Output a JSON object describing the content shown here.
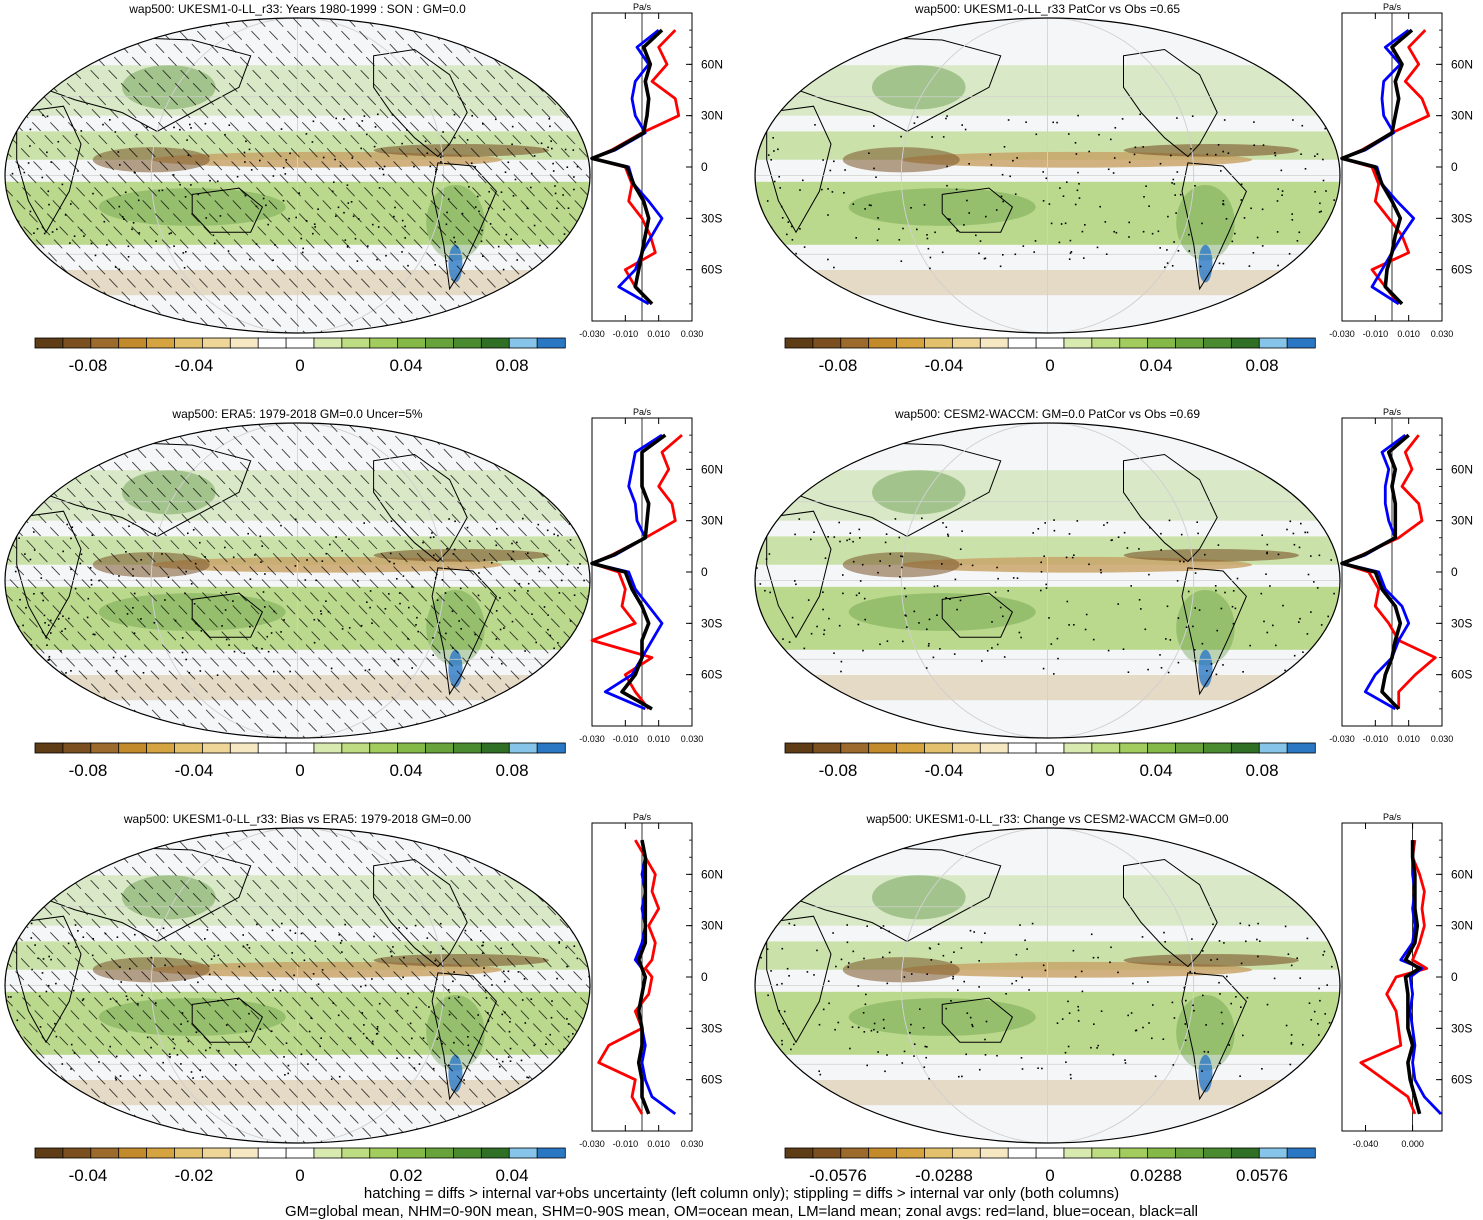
{
  "figure": {
    "footnotes": [
      "hatching = diffs > internal var+obs uncertainty (left column only); stippling = diffs > internal var only (both columns)",
      "GM=global mean, NHM=0-90N mean, SHM=0-90S mean, OM=ocean mean, LM=land mean; zonal avgs: red=land, blue=ocean, black=all"
    ]
  },
  "colors": {
    "land": "#ff0000",
    "ocean": "#0000ff",
    "all": "#000000",
    "palette": [
      "#5e3c16",
      "#7b4f1f",
      "#9c6a2c",
      "#c38a2c",
      "#d5a441",
      "#e3c06c",
      "#eed598",
      "#f6e8c2",
      "#ffffff",
      "#ffffff",
      "#d9eab0",
      "#bedd82",
      "#a2cd5e",
      "#85b947",
      "#67a33a",
      "#4b8b2f",
      "#2f6f26",
      "#86c4ea",
      "#2a78c4"
    ],
    "map_colors": {
      "neutral": "#f5f6f8",
      "green": "#a7cf6a",
      "greenDark": "#4f8f35",
      "brown": "#c9a56a",
      "brownDark": "#7a5428",
      "blue": "#2a78c4"
    }
  },
  "chart_data": [
    {
      "type": "heatmap",
      "title": "wap500: UKESM1-0-LL_r33: Years 1980-1999 : SON : GM=0.0",
      "colorbar": {
        "ticks": [
          "-0.08",
          "-0.04",
          "0",
          "0.04",
          "0.08"
        ],
        "range": [
          -0.1,
          0.1
        ]
      },
      "hatching": true,
      "zonal": {
        "units": "Pa/s",
        "xticks": [
          "-0.030",
          "-0.010",
          "0.010",
          "0.030"
        ],
        "x_range": [
          -0.03,
          0.03
        ],
        "lat_ticks": [
          "60N",
          "30N",
          "0",
          "30S",
          "60S"
        ],
        "lat": [
          80,
          70,
          60,
          50,
          40,
          30,
          20,
          10,
          5,
          0,
          -10,
          -20,
          -30,
          -40,
          -50,
          -60,
          -70,
          -80
        ],
        "series": [
          {
            "name": "land",
            "values": [
              0.02,
              0.01,
              0.015,
              0.006,
              0.02,
              0.022,
              0.0,
              -0.018,
              -0.03,
              -0.01,
              -0.006,
              -0.008,
              0.0,
              0.005,
              0.008,
              -0.01,
              -0.004,
              0.006
            ]
          },
          {
            "name": "ocean",
            "values": [
              0.01,
              -0.003,
              0.004,
              -0.004,
              -0.006,
              -0.004,
              0.002,
              -0.016,
              -0.03,
              -0.008,
              -0.005,
              0.004,
              0.012,
              0.006,
              0.0,
              -0.004,
              -0.014,
              0.004
            ]
          },
          {
            "name": "all",
            "values": [
              0.012,
              0.001,
              0.005,
              0.002,
              0.004,
              0.003,
              0.001,
              -0.017,
              -0.03,
              -0.009,
              -0.005,
              0.001,
              0.004,
              0.002,
              0.0,
              -0.002,
              -0.004,
              0.006
            ]
          }
        ]
      }
    },
    {
      "type": "heatmap",
      "title": "wap500: UKESM1-0-LL_r33 PatCor vs Obs =0.65",
      "colorbar": {
        "ticks": [
          "-0.08",
          "-0.04",
          "0",
          "0.04",
          "0.08"
        ],
        "range": [
          -0.1,
          0.1
        ]
      },
      "hatching": false,
      "zonal": {
        "units": "Pa/s",
        "xticks": [
          "-0.030",
          "-0.010",
          "0.010",
          "0.030"
        ],
        "x_range": [
          -0.03,
          0.03
        ],
        "lat_ticks": [
          "60N",
          "30N",
          "0",
          "30S",
          "60S"
        ],
        "lat": [
          80,
          70,
          60,
          50,
          40,
          30,
          20,
          10,
          5,
          0,
          -10,
          -20,
          -30,
          -40,
          -50,
          -60,
          -70,
          -80
        ],
        "series": [
          {
            "name": "land",
            "values": [
              0.02,
              0.01,
              0.016,
              0.008,
              0.018,
              0.022,
              0.0,
              -0.018,
              -0.03,
              -0.012,
              -0.008,
              -0.01,
              -0.002,
              0.006,
              0.01,
              -0.012,
              -0.004,
              0.004
            ]
          },
          {
            "name": "ocean",
            "values": [
              0.01,
              -0.004,
              0.005,
              -0.005,
              -0.006,
              -0.005,
              0.001,
              -0.016,
              -0.03,
              -0.009,
              -0.006,
              0.003,
              0.013,
              0.006,
              0.0,
              -0.006,
              -0.012,
              0.004
            ]
          },
          {
            "name": "all",
            "values": [
              0.012,
              0.0,
              0.006,
              0.002,
              0.004,
              0.002,
              0.0,
              -0.017,
              -0.03,
              -0.01,
              -0.006,
              0.0,
              0.005,
              0.002,
              0.0,
              -0.003,
              -0.004,
              0.006
            ]
          }
        ]
      }
    },
    {
      "type": "heatmap",
      "title": "wap500: ERA5: 1979-2018 GM=0.0 Uncer=5%",
      "colorbar": {
        "ticks": [
          "-0.08",
          "-0.04",
          "0",
          "0.04",
          "0.08"
        ],
        "range": [
          -0.1,
          0.1
        ]
      },
      "hatching": true,
      "zonal": {
        "units": "Pa/s",
        "xticks": [
          "-0.030",
          "-0.010",
          "0.010",
          "0.030"
        ],
        "x_range": [
          -0.03,
          0.03
        ],
        "lat_ticks": [
          "60N",
          "30N",
          "0",
          "30S",
          "60S"
        ],
        "lat": [
          80,
          70,
          60,
          50,
          40,
          30,
          20,
          10,
          5,
          0,
          -10,
          -20,
          -30,
          -40,
          -50,
          -60,
          -70,
          -80
        ],
        "series": [
          {
            "name": "land",
            "values": [
              0.024,
              0.012,
              0.016,
              0.01,
              0.018,
              0.02,
              0.002,
              -0.018,
              -0.03,
              -0.014,
              -0.01,
              -0.012,
              -0.004,
              -0.03,
              0.006,
              -0.01,
              -0.004,
              0.004
            ]
          },
          {
            "name": "ocean",
            "values": [
              0.012,
              -0.004,
              -0.006,
              -0.008,
              -0.004,
              -0.003,
              0.002,
              -0.016,
              -0.03,
              -0.008,
              -0.004,
              0.004,
              0.012,
              0.006,
              0.0,
              -0.006,
              -0.022,
              0.002
            ]
          },
          {
            "name": "all",
            "values": [
              0.014,
              0.0,
              0.0,
              0.0,
              0.004,
              0.003,
              0.002,
              -0.017,
              -0.03,
              -0.01,
              -0.006,
              0.0,
              0.004,
              0.0,
              0.0,
              -0.004,
              -0.012,
              0.006
            ]
          }
        ]
      }
    },
    {
      "type": "heatmap",
      "title": "wap500: CESM2-WACCM: GM=0.0 PatCor vs Obs =0.69",
      "colorbar": {
        "ticks": [
          "-0.08",
          "-0.04",
          "0",
          "0.04",
          "0.08"
        ],
        "range": [
          -0.1,
          0.1
        ]
      },
      "hatching": false,
      "zonal": {
        "units": "Pa/s",
        "xticks": [
          "-0.030",
          "-0.010",
          "0.010",
          "0.030"
        ],
        "x_range": [
          -0.03,
          0.03
        ],
        "lat_ticks": [
          "60N",
          "30N",
          "0",
          "30S",
          "60S"
        ],
        "lat": [
          80,
          70,
          60,
          50,
          40,
          30,
          20,
          10,
          5,
          0,
          -10,
          -20,
          -30,
          -40,
          -50,
          -60,
          -70,
          -80
        ],
        "series": [
          {
            "name": "land",
            "values": [
              0.016,
              0.008,
              0.012,
              0.006,
              0.016,
              0.018,
              0.004,
              -0.018,
              -0.03,
              -0.014,
              -0.008,
              -0.01,
              -0.002,
              0.004,
              0.026,
              0.014,
              0.004,
              0.004
            ]
          },
          {
            "name": "ocean",
            "values": [
              0.008,
              -0.006,
              -0.002,
              -0.004,
              -0.004,
              -0.002,
              0.002,
              -0.016,
              -0.03,
              -0.008,
              -0.004,
              0.006,
              0.01,
              0.004,
              0.0,
              -0.01,
              -0.016,
              0.002
            ]
          },
          {
            "name": "all",
            "values": [
              0.01,
              -0.002,
              0.002,
              0.0,
              0.002,
              0.002,
              0.002,
              -0.017,
              -0.03,
              -0.01,
              -0.006,
              0.002,
              0.005,
              0.002,
              0.0,
              -0.004,
              -0.006,
              0.004
            ]
          }
        ]
      }
    },
    {
      "type": "heatmap",
      "title": "wap500: UKESM1-0-LL_r33: Bias vs ERA5: 1979-2018  GM=0.00",
      "colorbar": {
        "ticks": [
          "-0.04",
          "-0.02",
          "0",
          "0.02",
          "0.04"
        ],
        "range": [
          -0.05,
          0.05
        ]
      },
      "hatching": true,
      "zonal": {
        "units": "Pa/s",
        "xticks": [
          "-0.030",
          "-0.010",
          "0.010",
          "0.030"
        ],
        "x_range": [
          -0.03,
          0.03
        ],
        "lat_ticks": [
          "60N",
          "30N",
          "0",
          "30S",
          "60S"
        ],
        "lat": [
          80,
          70,
          60,
          50,
          40,
          30,
          20,
          10,
          5,
          0,
          -10,
          -20,
          -30,
          -40,
          -50,
          -60,
          -70,
          -80
        ],
        "series": [
          {
            "name": "land",
            "values": [
              -0.004,
              0.002,
              0.008,
              0.006,
              0.01,
              0.004,
              0.008,
              0.006,
              0.002,
              0.006,
              0.004,
              -0.004,
              0.0,
              -0.02,
              -0.026,
              -0.004,
              -0.006,
              0.0
            ]
          },
          {
            "name": "ocean",
            "values": [
              0.0,
              0.002,
              0.0,
              0.002,
              0.0,
              0.002,
              0.0,
              -0.004,
              0.0,
              0.002,
              0.0,
              -0.002,
              0.0,
              0.002,
              0.0,
              0.002,
              0.006,
              0.02
            ]
          },
          {
            "name": "all",
            "values": [
              0.0,
              0.002,
              0.002,
              0.002,
              0.002,
              0.002,
              0.002,
              -0.002,
              0.0,
              0.002,
              0.0,
              -0.002,
              0.0,
              0.0,
              -0.002,
              0.0,
              0.0,
              0.004
            ]
          }
        ]
      }
    },
    {
      "type": "heatmap",
      "title": "wap500: UKESM1-0-LL_r33: Change vs CESM2-WACCM GM=0.00",
      "colorbar": {
        "ticks": [
          "-0.0576",
          "-0.0288",
          "0",
          "0.0288",
          "0.0576"
        ],
        "range": [
          -0.072,
          0.072
        ]
      },
      "hatching": false,
      "zonal": {
        "units": "Pa/s",
        "xticks": [
          "-0.040",
          "0.000"
        ],
        "x_range": [
          -0.06,
          0.025
        ],
        "lat_ticks": [
          "60N",
          "30N",
          "0",
          "30S",
          "60S"
        ],
        "lat": [
          80,
          70,
          60,
          50,
          40,
          30,
          20,
          10,
          5,
          0,
          -10,
          -20,
          -30,
          -40,
          -50,
          -60,
          -70,
          -80
        ],
        "series": [
          {
            "name": "land",
            "values": [
              0.002,
              0.0,
              0.006,
              0.01,
              0.008,
              0.01,
              0.006,
              0.0,
              0.012,
              -0.014,
              -0.022,
              -0.014,
              -0.012,
              -0.01,
              -0.044,
              -0.024,
              -0.004,
              0.002
            ]
          },
          {
            "name": "ocean",
            "values": [
              0.0,
              0.0,
              0.0,
              0.002,
              0.0,
              0.002,
              0.0,
              -0.01,
              0.008,
              -0.002,
              0.0,
              -0.002,
              0.0,
              0.002,
              0.0,
              0.002,
              0.01,
              0.024
            ]
          },
          {
            "name": "all",
            "values": [
              0.0,
              0.0,
              0.002,
              0.002,
              0.002,
              0.004,
              0.002,
              -0.006,
              0.006,
              -0.006,
              -0.004,
              -0.004,
              -0.004,
              0.0,
              -0.004,
              -0.002,
              0.002,
              0.006
            ]
          }
        ]
      }
    }
  ]
}
